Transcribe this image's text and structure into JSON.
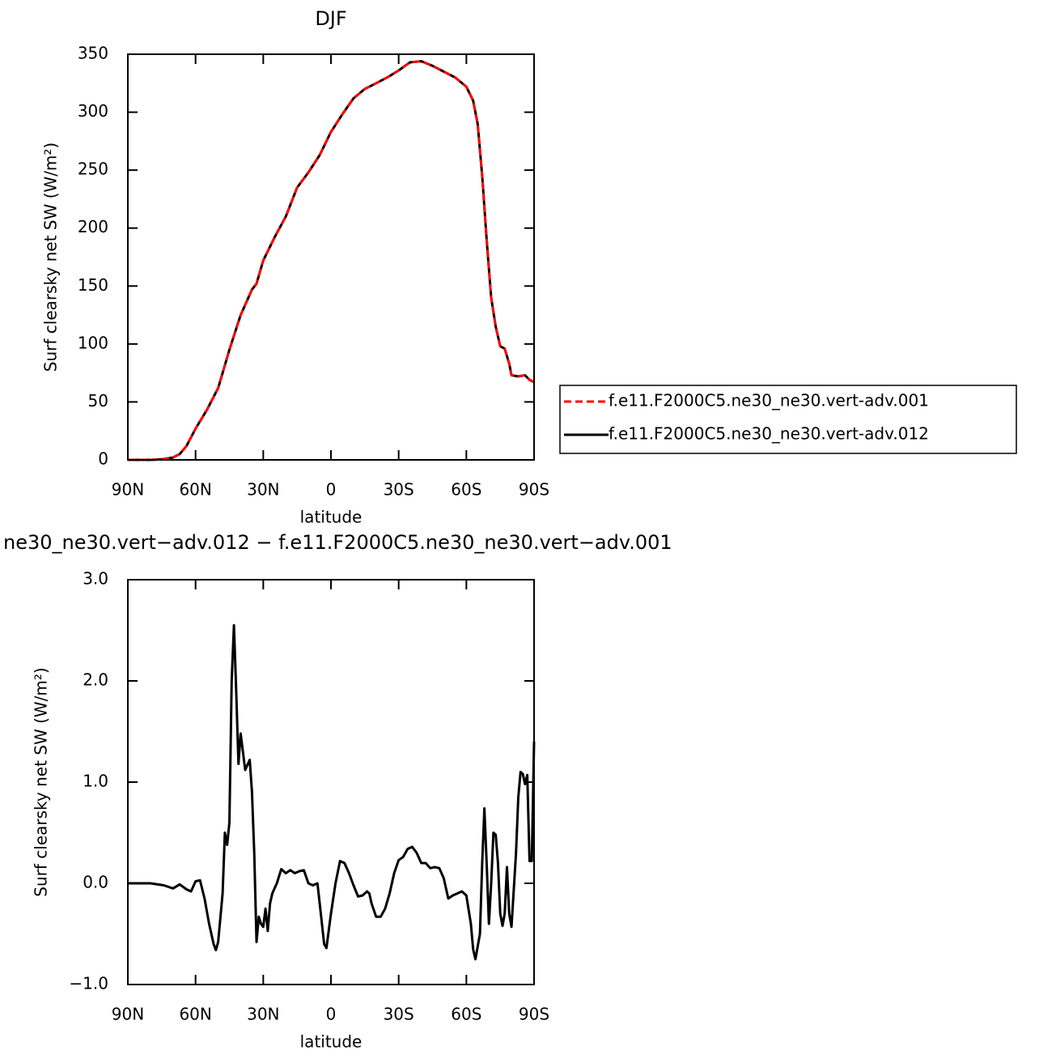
{
  "chart_data": [
    {
      "type": "line",
      "title": "DJF",
      "x_label": "latitude",
      "y_label": "Surf clearsky net SW (W/m²)",
      "xlim": [
        90,
        -90
      ],
      "xticks": [
        {
          "value": 90,
          "label": "90N"
        },
        {
          "value": 60,
          "label": "60N"
        },
        {
          "value": 30,
          "label": "30N"
        },
        0,
        {
          "value": -30,
          "label": "30S"
        },
        {
          "value": -60,
          "label": "60S"
        },
        {
          "value": -90,
          "label": "90S"
        }
      ],
      "ylim": [
        0,
        350
      ],
      "yticks": [
        0,
        50,
        100,
        150,
        200,
        250,
        300,
        350
      ],
      "legend": "right",
      "x": [
        90,
        80,
        75,
        70,
        67,
        64,
        60,
        55,
        50,
        45,
        40,
        35,
        33,
        30,
        25,
        20,
        15,
        10,
        5,
        0,
        -5,
        -10,
        -15,
        -20,
        -25,
        -30,
        -35,
        -40,
        -45,
        -50,
        -55,
        -60,
        -63,
        -65,
        -67,
        -69,
        -71,
        -73,
        -75,
        -77,
        -79,
        -80,
        -83,
        -86,
        -88,
        -90
      ],
      "series": [
        {
          "name": "f.e11.F2000C5.ne30_ne30.vert-adv.001",
          "color": "#ff0000",
          "style": "dashed",
          "values": [
            0,
            0,
            0.5,
            2,
            5,
            12,
            27,
            43,
            62,
            95,
            125,
            147,
            152,
            172,
            192,
            210,
            235,
            248,
            263,
            283,
            298,
            312,
            320,
            325,
            330,
            336,
            343,
            344,
            340,
            335,
            330,
            322,
            310,
            290,
            245,
            190,
            140,
            115,
            98,
            96,
            83,
            73,
            72,
            73,
            69,
            67
          ]
        },
        {
          "name": "f.e11.F2000C5.ne30_ne30.vert-adv.012",
          "color": "#000000",
          "style": "solid",
          "values": [
            0,
            0,
            0.5,
            2,
            5,
            12,
            27,
            43,
            62,
            95,
            125,
            147,
            152,
            172,
            192,
            210,
            235,
            248,
            263,
            283,
            298,
            312,
            320,
            325,
            330,
            336,
            343,
            344,
            340,
            335,
            330,
            322,
            310,
            290,
            245,
            190,
            140,
            115,
            98,
            96,
            83,
            73,
            72,
            73,
            69,
            67
          ]
        }
      ]
    },
    {
      "type": "line",
      "title": "ne30_ne30.vert−adv.012 − f.e11.F2000C5.ne30_ne30.vert−adv.001",
      "x_label": "latitude",
      "y_label": "Surf clearsky net SW (W/m²)",
      "xlim": [
        90,
        -90
      ],
      "xticks": [
        {
          "value": 90,
          "label": "90N"
        },
        {
          "value": 60,
          "label": "60N"
        },
        {
          "value": 30,
          "label": "30N"
        },
        0,
        {
          "value": -30,
          "label": "30S"
        },
        {
          "value": -60,
          "label": "60S"
        },
        {
          "value": -90,
          "label": "90S"
        }
      ],
      "ylim": [
        -1,
        3
      ],
      "yticks": [
        {
          "value": -1,
          "label": "−1.0"
        },
        {
          "value": 0,
          "label": "0.0"
        },
        {
          "value": 1,
          "label": "1.0"
        },
        {
          "value": 2,
          "label": "2.0"
        },
        {
          "value": 3,
          "label": "3.0"
        }
      ],
      "x": [
        90,
        80,
        74,
        70,
        67,
        64,
        62,
        60,
        58,
        56,
        54,
        52,
        51,
        50,
        48,
        47,
        46,
        45,
        44,
        43,
        42,
        41,
        40,
        39,
        38,
        37,
        36,
        35,
        34,
        33,
        32,
        31,
        30,
        29,
        28,
        27,
        26,
        24,
        22,
        20,
        18,
        16,
        14,
        12,
        10,
        8,
        6,
        5,
        3,
        2,
        0,
        -2,
        -4,
        -6,
        -8,
        -10,
        -12,
        -14,
        -16,
        -17,
        -18,
        -20,
        -22,
        -24,
        -26,
        -28,
        -30,
        -32,
        -34,
        -36,
        -38,
        -40,
        -42,
        -44,
        -46,
        -48,
        -50,
        -52,
        -54,
        -56,
        -58,
        -60,
        -62,
        -63,
        -64,
        -66,
        -67,
        -68,
        -69,
        -70,
        -71,
        -72,
        -73,
        -74,
        -75,
        -76,
        -77,
        -78,
        -79,
        -80,
        -82,
        -83,
        -84,
        -85,
        -86,
        -87,
        -88,
        -89,
        -90
      ],
      "series": [
        {
          "color": "#000000",
          "style": "solid",
          "values": [
            0,
            0,
            -0.02,
            -0.05,
            -0.01,
            -0.06,
            -0.08,
            0.02,
            0.03,
            -0.15,
            -0.4,
            -0.6,
            -0.66,
            -0.58,
            -0.1,
            0.5,
            0.38,
            0.6,
            2.0,
            2.55,
            1.9,
            1.18,
            1.48,
            1.3,
            1.12,
            1.17,
            1.22,
            0.9,
            0.3,
            -0.58,
            -0.33,
            -0.4,
            -0.43,
            -0.25,
            -0.47,
            -0.2,
            -0.1,
            0.0,
            0.14,
            0.1,
            0.13,
            0.1,
            0.12,
            0.13,
            0.0,
            -0.02,
            0.0,
            -0.2,
            -0.6,
            -0.64,
            -0.3,
            0.0,
            0.22,
            0.2,
            0.1,
            -0.02,
            -0.13,
            -0.12,
            -0.08,
            -0.1,
            -0.2,
            -0.33,
            -0.33,
            -0.25,
            -0.1,
            0.1,
            0.23,
            0.26,
            0.34,
            0.36,
            0.3,
            0.2,
            0.2,
            0.15,
            0.16,
            0.15,
            0.05,
            -0.15,
            -0.12,
            -0.1,
            -0.08,
            -0.12,
            -0.4,
            -0.65,
            -0.75,
            -0.5,
            0.2,
            0.74,
            0.2,
            -0.4,
            0.0,
            0.5,
            0.48,
            0.2,
            -0.3,
            -0.42,
            -0.3,
            0.16,
            -0.3,
            -0.43,
            0.3,
            0.85,
            1.1,
            1.08,
            0.98,
            1.07,
            0.22,
            0.22,
            1.4
          ]
        }
      ]
    }
  ]
}
